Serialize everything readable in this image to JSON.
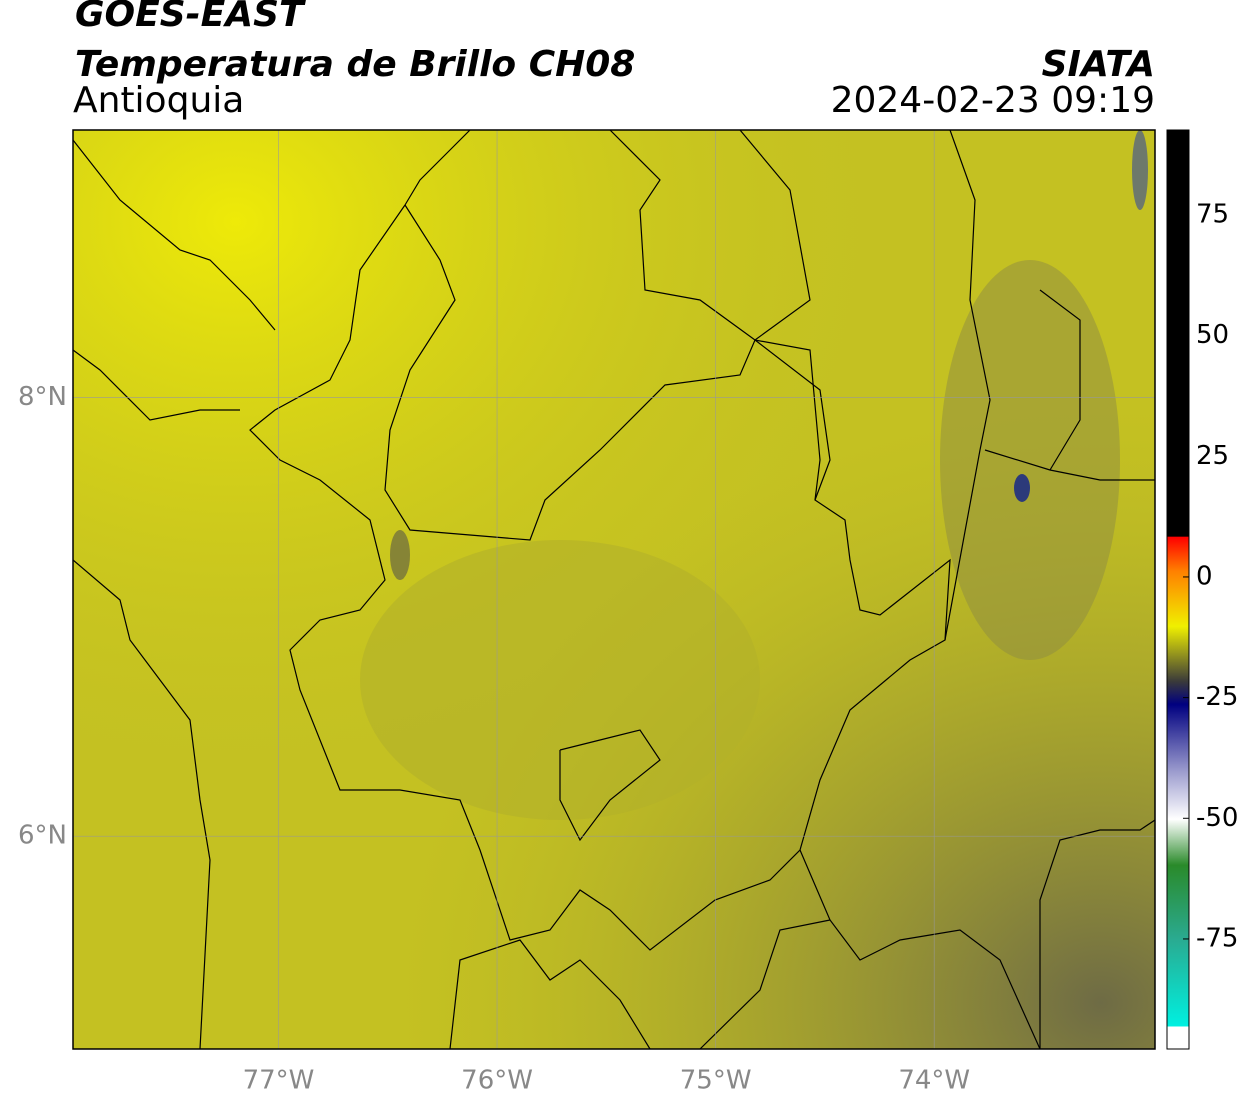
{
  "header": {
    "title": "GOES-EAST",
    "subtitle": "Temperatura de Brillo CH08",
    "region": "Antioquia",
    "source": "SIATA",
    "timestamp": "2024-02-23 09:19"
  },
  "map": {
    "xlim": [
      -77.94,
      -72.99
    ],
    "ylim": [
      5.03,
      9.22
    ],
    "grid": true,
    "xticks": [
      {
        "value": -77,
        "label": "77°W"
      },
      {
        "value": -76,
        "label": "76°W"
      },
      {
        "value": -75,
        "label": "75°W"
      },
      {
        "value": -74,
        "label": "74°W"
      }
    ],
    "yticks": [
      {
        "value": 8,
        "label": "8°N"
      },
      {
        "value": 6,
        "label": "6°N"
      }
    ]
  },
  "colorbar": {
    "lim": [
      -97.8,
      92.6
    ],
    "ticks": [
      75,
      50,
      25,
      0,
      -25,
      -50,
      -75
    ]
  }
}
